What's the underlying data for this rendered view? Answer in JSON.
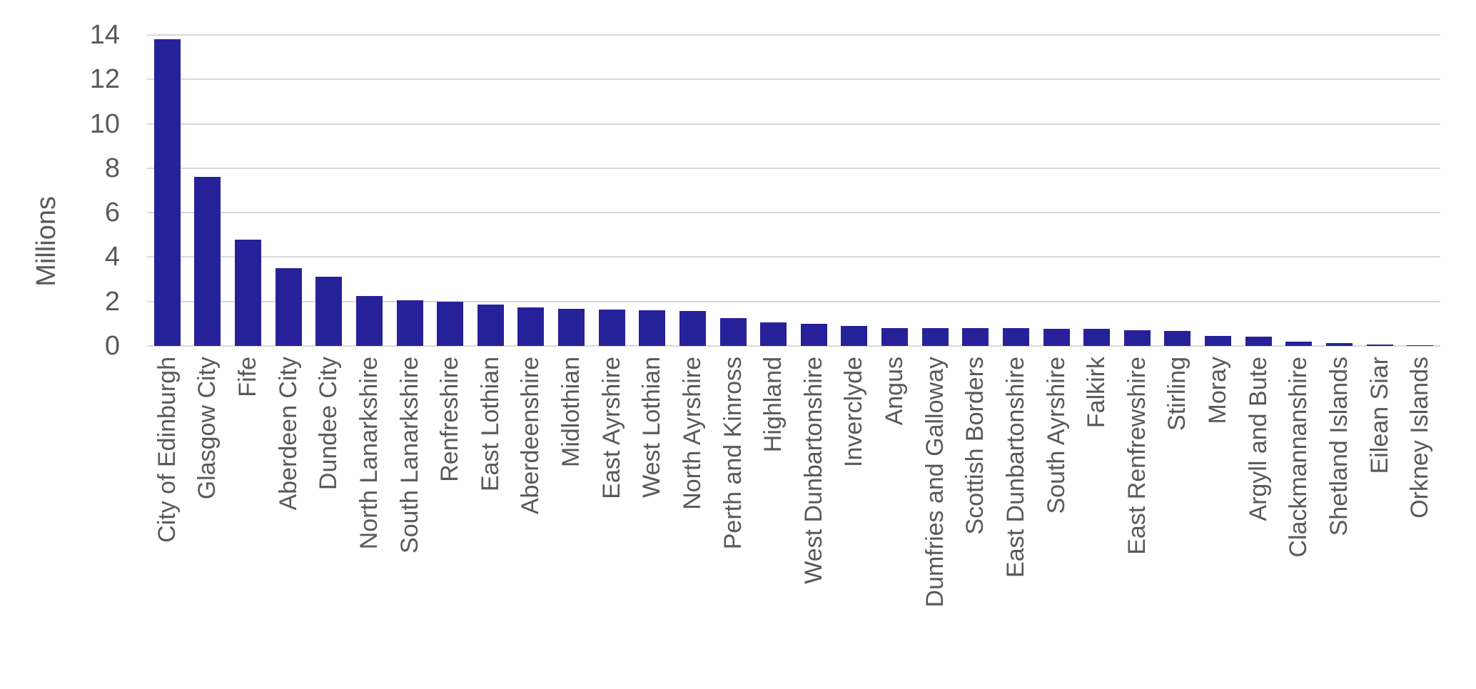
{
  "chart_data": {
    "type": "bar",
    "title": "",
    "xlabel": "",
    "ylabel": "Millions",
    "ylim": [
      0,
      14
    ],
    "yticks": [
      0,
      2,
      4,
      6,
      8,
      10,
      12,
      14
    ],
    "grid": true,
    "legend": "none",
    "bar_color": "#272199",
    "grid_color": "#d9d9d9",
    "text_color": "#595959",
    "categories": [
      "City of Edinburgh",
      "Glasgow City",
      "Fife",
      "Aberdeen City",
      "Dundee City",
      "North Lanarkshire",
      "South Lanarkshire",
      "Renfreshire",
      "East Lothian",
      "Aberdeenshire",
      "Midlothian",
      "East Ayrshire",
      "West Lothian",
      "North Ayrshire",
      "Perth and Kinross",
      "Highland",
      "West Dunbartonshire",
      "Inverclyde",
      "Angus",
      "Dumfries and Galloway",
      "Scottish Borders",
      "East Dunbartonshire",
      "South Ayrshire",
      "Falkirk",
      "East Renfrewshire",
      "Stirling",
      "Moray",
      "Argyll and Bute",
      "Clackmannanshire",
      "Shetland Islands",
      "Eilean Siar",
      "Orkney Islands"
    ],
    "values": [
      13.8,
      7.6,
      4.8,
      3.5,
      3.1,
      2.25,
      2.05,
      2.0,
      1.87,
      1.72,
      1.67,
      1.63,
      1.6,
      1.56,
      1.26,
      1.06,
      1.01,
      0.9,
      0.81,
      0.81,
      0.8,
      0.79,
      0.78,
      0.76,
      0.72,
      0.68,
      0.45,
      0.42,
      0.2,
      0.14,
      0.05,
      0.04
    ]
  }
}
